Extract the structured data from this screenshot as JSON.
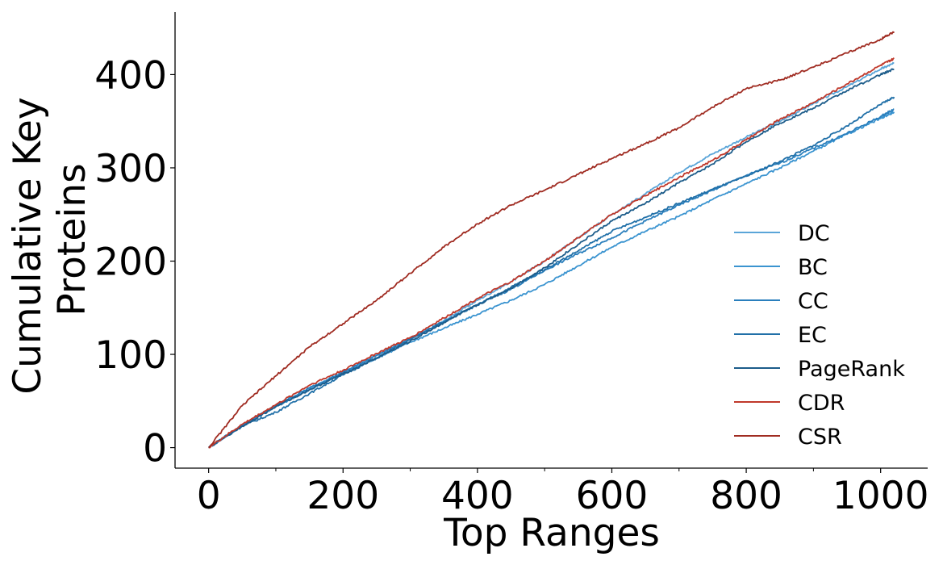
{
  "chart_data": {
    "type": "line",
    "xlabel": "Top Ranges",
    "ylabel_lines": [
      "Cumulative Key",
      "Proteins"
    ],
    "xlim": [
      -50,
      1070
    ],
    "ylim": [
      -22,
      467
    ],
    "xticks": [
      0,
      200,
      400,
      600,
      800,
      1000
    ],
    "yticks": [
      0,
      100,
      200,
      300,
      400
    ],
    "xtick_labels": [
      "0",
      "200",
      "400",
      "600",
      "800",
      "1000"
    ],
    "ytick_labels": [
      "0",
      "100",
      "200",
      "300",
      "400"
    ],
    "minor_xticks": [
      100,
      300,
      500,
      700,
      900
    ],
    "grid": false,
    "legend_position": "center-right",
    "series": [
      {
        "name": "DC",
        "color": "#5aa5d8",
        "x": [
          0,
          50,
          100,
          150,
          200,
          250,
          300,
          350,
          400,
          450,
          500,
          550,
          600,
          650,
          700,
          750,
          800,
          850,
          900,
          950,
          1000,
          1020
        ],
        "y": [
          0,
          24,
          45,
          63,
          81,
          99,
          116,
          136,
          158,
          178,
          200,
          225,
          250,
          272,
          295,
          315,
          333,
          350,
          369,
          387,
          406,
          412
        ]
      },
      {
        "name": "BC",
        "color": "#3b94d0",
        "x": [
          0,
          50,
          100,
          150,
          200,
          250,
          300,
          350,
          400,
          450,
          500,
          550,
          600,
          650,
          700,
          750,
          800,
          850,
          900,
          950,
          1000,
          1020
        ],
        "y": [
          0,
          24,
          44,
          62,
          80,
          96,
          113,
          128,
          143,
          158,
          175,
          195,
          215,
          232,
          248,
          266,
          283,
          300,
          318,
          336,
          353,
          360
        ]
      },
      {
        "name": "CC",
        "color": "#2a7fbd",
        "x": [
          0,
          50,
          100,
          150,
          200,
          250,
          300,
          350,
          400,
          450,
          500,
          550,
          600,
          650,
          700,
          750,
          800,
          850,
          900,
          950,
          1000,
          1020
        ],
        "y": [
          0,
          24,
          45,
          64,
          81,
          99,
          117,
          135,
          153,
          170,
          190,
          208,
          225,
          243,
          260,
          276,
          292,
          305,
          321,
          337,
          355,
          363
        ]
      },
      {
        "name": "EC",
        "color": "#2170a8",
        "x": [
          0,
          50,
          100,
          150,
          200,
          250,
          300,
          350,
          400,
          450,
          500,
          550,
          600,
          650,
          700,
          750,
          800,
          850,
          900,
          950,
          1000,
          1020
        ],
        "y": [
          0,
          23,
          38,
          58,
          78,
          96,
          116,
          135,
          153,
          172,
          191,
          211,
          232,
          247,
          262,
          277,
          291,
          307,
          324,
          345,
          368,
          376
        ]
      },
      {
        "name": "PageRank",
        "color": "#1c5c8a",
        "x": [
          0,
          50,
          100,
          150,
          200,
          250,
          300,
          350,
          400,
          450,
          500,
          550,
          600,
          650,
          700,
          750,
          800,
          850,
          900,
          950,
          1000,
          1020
        ],
        "y": [
          0,
          23,
          44,
          62,
          79,
          96,
          114,
          134,
          153,
          171,
          193,
          218,
          243,
          262,
          284,
          304,
          328,
          348,
          364,
          383,
          400,
          406
        ]
      },
      {
        "name": "CDR",
        "color": "#c0392b",
        "x": [
          0,
          50,
          100,
          150,
          200,
          250,
          300,
          350,
          400,
          450,
          500,
          550,
          600,
          650,
          700,
          750,
          800,
          850,
          900,
          950,
          1000,
          1020
        ],
        "y": [
          0,
          25,
          46,
          67,
          83,
          101,
          118,
          139,
          160,
          178,
          200,
          225,
          250,
          270,
          290,
          308,
          330,
          352,
          370,
          390,
          410,
          417
        ]
      },
      {
        "name": "CSR",
        "color": "#a02c22",
        "x": [
          0,
          50,
          100,
          150,
          200,
          250,
          300,
          350,
          400,
          450,
          500,
          550,
          600,
          650,
          700,
          750,
          800,
          850,
          900,
          950,
          1000,
          1020
        ],
        "y": [
          0,
          45,
          77,
          108,
          133,
          158,
          187,
          215,
          240,
          260,
          276,
          293,
          310,
          326,
          343,
          365,
          385,
          394,
          408,
          423,
          438,
          446
        ]
      }
    ]
  }
}
